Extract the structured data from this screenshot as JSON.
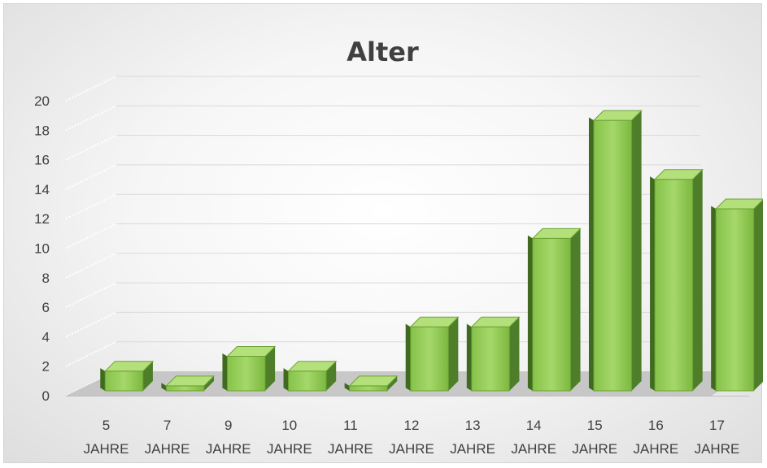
{
  "chart_data": {
    "type": "bar",
    "title": "Alter",
    "categories": [
      [
        "5",
        "JAHRE"
      ],
      [
        "7",
        "JAHRE"
      ],
      [
        "9",
        "JAHRE"
      ],
      [
        "10",
        "JAHRE"
      ],
      [
        "11",
        "JAHRE"
      ],
      [
        "12",
        "JAHRE"
      ],
      [
        "13",
        "JAHRE"
      ],
      [
        "14",
        "JAHRE"
      ],
      [
        "15",
        "JAHRE"
      ],
      [
        "16",
        "JAHRE"
      ],
      [
        "17",
        "JAHRE"
      ]
    ],
    "values": [
      2,
      1,
      3,
      2,
      1,
      5,
      5,
      11,
      19,
      15,
      13
    ],
    "ylim": [
      0,
      20
    ],
    "yticks": [
      "0",
      "2",
      "4",
      "6",
      "8",
      "10",
      "12",
      "14",
      "16",
      "18",
      "20"
    ],
    "grid": true,
    "three_d": true,
    "bar_color": "#8cc63f"
  }
}
